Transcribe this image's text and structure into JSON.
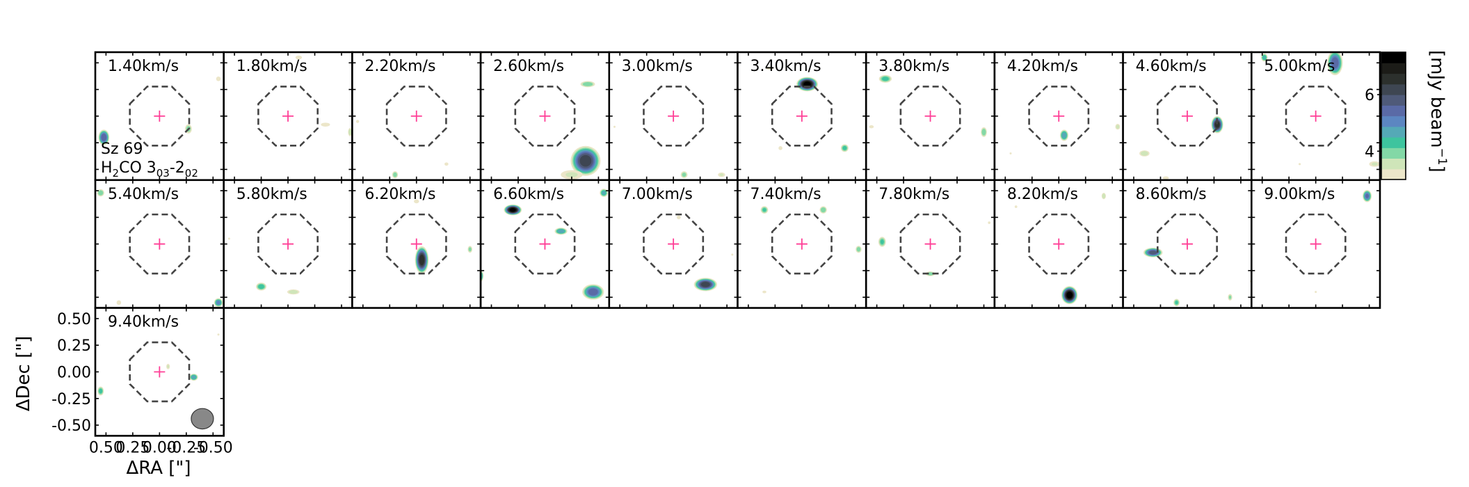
{
  "chart_data": {
    "type": "channel_map",
    "source": "Sz 69",
    "line": "H2CO 3_03-2_02",
    "source_label": "Sz 69",
    "line_label_main": "H",
    "line_label_sub1": "2",
    "line_label_mid": "CO 3",
    "line_label_sub2": "03",
    "line_label_dash": "-2",
    "line_label_sub3": "02",
    "channels": [
      "1.40km/s",
      "1.80km/s",
      "2.20km/s",
      "2.60km/s",
      "3.00km/s",
      "3.40km/s",
      "3.80km/s",
      "4.20km/s",
      "4.60km/s",
      "5.00km/s",
      "5.40km/s",
      "5.80km/s",
      "6.20km/s",
      "6.60km/s",
      "7.00km/s",
      "7.40km/s",
      "7.80km/s",
      "8.20km/s",
      "8.60km/s",
      "9.00km/s",
      "9.40km/s"
    ],
    "velocities_kms": [
      1.4,
      1.8,
      2.2,
      2.6,
      3.0,
      3.4,
      3.8,
      4.2,
      4.6,
      5.0,
      5.4,
      5.8,
      6.2,
      6.6,
      7.0,
      7.4,
      7.8,
      8.2,
      8.6,
      9.0,
      9.4
    ],
    "xlabel": "ΔRA [\"]",
    "ylabel": "ΔDec [\"]",
    "xlim": [
      0.6,
      -0.6
    ],
    "ylim": [
      -0.6,
      0.6
    ],
    "xticks": [
      0.5,
      0.25,
      0.0,
      -0.25,
      -0.5
    ],
    "xtick_labels": [
      "0.50",
      "0.25",
      "0.00",
      "-0.25",
      "-0.50"
    ],
    "yticks": [
      0.5,
      0.25,
      0.0,
      -0.25,
      -0.5
    ],
    "ytick_labels": [
      "0.50",
      "0.25",
      "0.00",
      "-0.25",
      "-0.50"
    ],
    "colorbar": {
      "label": "[mJy beam⁻¹]",
      "label_main": "[mJy beam",
      "label_sup": "−1",
      "label_close": "]",
      "range": [
        3.0,
        7.5
      ],
      "ticks": [
        4,
        6
      ],
      "tick_labels": [
        "4",
        "6"
      ],
      "colors": [
        "#ece6c9",
        "#cfe5b9",
        "#83d8a6",
        "#3ec49e",
        "#55a9b6",
        "#5c86c1",
        "#5a6aa6",
        "#4f5a79",
        "#3e4652",
        "#2c302d",
        "#1c1c18",
        "#000000"
      ]
    },
    "center_marker_color": "#ff3e96",
    "mask_ellipse": {
      "radius_arcsec": 0.3,
      "style": "dashed",
      "color": "#444444"
    },
    "beam": {
      "major_arcsec": 0.16,
      "minor_arcsec": 0.14,
      "color": "#888888"
    },
    "emission": [
      [
        {
          "x": 0.52,
          "y": -0.2,
          "peak": 5.6,
          "sx": 0.035,
          "sy": 0.05
        },
        {
          "x": -0.27,
          "y": -0.12,
          "peak": 3.9,
          "sx": 0.03,
          "sy": 0.04
        },
        {
          "x": -0.55,
          "y": 0.35,
          "peak": 3.2,
          "sx": 0.03,
          "sy": 0.03
        }
      ],
      [
        {
          "x": -0.35,
          "y": -0.08,
          "peak": 3.1,
          "sx": 0.07,
          "sy": 0.03
        },
        {
          "x": -0.1,
          "y": 0.55,
          "peak": 3.1,
          "sx": 0.05,
          "sy": 0.03
        },
        {
          "x": -0.58,
          "y": -0.15,
          "peak": 3.6,
          "sx": 0.02,
          "sy": 0.04
        }
      ],
      [
        {
          "x": 0.2,
          "y": -0.55,
          "peak": 4.0,
          "sx": 0.025,
          "sy": 0.03
        },
        {
          "x": 0.55,
          "y": -0.05,
          "peak": 3.2,
          "sx": 0.02,
          "sy": 0.02
        },
        {
          "x": -0.28,
          "y": -0.45,
          "peak": 3.1,
          "sx": 0.03,
          "sy": 0.025
        }
      ],
      [
        {
          "x": -0.38,
          "y": -0.42,
          "peak": 6.2,
          "sx": 0.09,
          "sy": 0.09
        },
        {
          "x": -0.4,
          "y": 0.3,
          "peak": 4.1,
          "sx": 0.06,
          "sy": 0.025
        },
        {
          "x": -0.25,
          "y": -0.55,
          "peak": 3.4,
          "sx": 0.12,
          "sy": 0.05
        },
        {
          "x": 0.6,
          "y": 0.6,
          "peak": 3.2,
          "sx": 0.03,
          "sy": 0.03
        }
      ],
      [
        {
          "x": -0.1,
          "y": -0.55,
          "peak": 3.9,
          "sx": 0.03,
          "sy": 0.03
        },
        {
          "x": -0.45,
          "y": -0.55,
          "peak": 3.4,
          "sx": 0.04,
          "sy": 0.025
        },
        {
          "x": 0.55,
          "y": -0.1,
          "peak": 3.0,
          "sx": 0.02,
          "sy": 0.02
        }
      ],
      [
        {
          "x": -0.05,
          "y": 0.3,
          "peak": 7.3,
          "sx": 0.06,
          "sy": 0.04
        },
        {
          "x": -0.4,
          "y": -0.3,
          "peak": 4.3,
          "sx": 0.03,
          "sy": 0.03
        },
        {
          "x": 0.3,
          "y": 0.45,
          "peak": 3.2,
          "sx": 0.05,
          "sy": 0.02
        },
        {
          "x": 0.2,
          "y": -0.3,
          "peak": 3.1,
          "sx": 0.03,
          "sy": 0.03
        }
      ],
      [
        {
          "x": 0.42,
          "y": 0.35,
          "peak": 4.3,
          "sx": 0.05,
          "sy": 0.03
        },
        {
          "x": -0.5,
          "y": -0.15,
          "peak": 4.1,
          "sx": 0.025,
          "sy": 0.04
        },
        {
          "x": 0.55,
          "y": -0.1,
          "peak": 3.2,
          "sx": 0.03,
          "sy": 0.02
        }
      ],
      [
        {
          "x": -0.05,
          "y": -0.18,
          "peak": 4.8,
          "sx": 0.03,
          "sy": 0.04
        },
        {
          "x": -0.55,
          "y": -0.1,
          "peak": 3.5,
          "sx": 0.025,
          "sy": 0.03
        },
        {
          "x": 0.45,
          "y": -0.35,
          "peak": 3.0,
          "sx": 0.02,
          "sy": 0.02
        }
      ],
      [
        {
          "x": -0.28,
          "y": -0.08,
          "peak": 6.6,
          "sx": 0.035,
          "sy": 0.05
        },
        {
          "x": 0.4,
          "y": -0.35,
          "peak": 3.6,
          "sx": 0.05,
          "sy": 0.03
        },
        {
          "x": 0.2,
          "y": -0.58,
          "peak": 3.2,
          "sx": 0.04,
          "sy": 0.02
        }
      ],
      [
        {
          "x": -0.18,
          "y": 0.5,
          "peak": 5.5,
          "sx": 0.05,
          "sy": 0.08
        },
        {
          "x": 0.48,
          "y": 0.55,
          "peak": 4.5,
          "sx": 0.025,
          "sy": 0.03
        },
        {
          "x": -0.55,
          "y": -0.45,
          "peak": 3.4,
          "sx": 0.06,
          "sy": 0.03
        },
        {
          "x": 0.15,
          "y": -0.45,
          "peak": 3.0,
          "sx": 0.03,
          "sy": 0.02
        }
      ],
      [
        {
          "x": 0.55,
          "y": 0.48,
          "peak": 4.1,
          "sx": 0.03,
          "sy": 0.03
        },
        {
          "x": 0.38,
          "y": -0.55,
          "peak": 3.2,
          "sx": 0.03,
          "sy": 0.03
        },
        {
          "x": -0.55,
          "y": -0.55,
          "peak": 5.0,
          "sx": 0.03,
          "sy": 0.03
        }
      ],
      [
        {
          "x": 0.25,
          "y": -0.4,
          "peak": 4.4,
          "sx": 0.04,
          "sy": 0.03
        },
        {
          "x": -0.05,
          "y": -0.45,
          "peak": 3.6,
          "sx": 0.06,
          "sy": 0.025
        },
        {
          "x": 0.55,
          "y": 0.05,
          "peak": 3.0,
          "sx": 0.02,
          "sy": 0.02
        }
      ],
      [
        {
          "x": -0.05,
          "y": -0.15,
          "peak": 6.6,
          "sx": 0.04,
          "sy": 0.08
        },
        {
          "x": -0.5,
          "y": -0.05,
          "peak": 3.9,
          "sx": 0.02,
          "sy": 0.03
        },
        {
          "x": 0.0,
          "y": 0.4,
          "peak": 3.1,
          "sx": 0.04,
          "sy": 0.03
        }
      ],
      [
        {
          "x": 0.3,
          "y": 0.32,
          "peak": 7.3,
          "sx": 0.05,
          "sy": 0.03
        },
        {
          "x": -0.15,
          "y": 0.12,
          "peak": 4.8,
          "sx": 0.045,
          "sy": 0.025
        },
        {
          "x": -0.45,
          "y": -0.45,
          "peak": 5.5,
          "sx": 0.07,
          "sy": 0.05
        },
        {
          "x": -0.55,
          "y": 0.48,
          "peak": 4.6,
          "sx": 0.03,
          "sy": 0.03
        },
        {
          "x": 0.6,
          "y": -0.3,
          "peak": 4.8,
          "sx": 0.02,
          "sy": 0.04
        }
      ],
      [
        {
          "x": -0.3,
          "y": -0.38,
          "peak": 6.2,
          "sx": 0.07,
          "sy": 0.04
        },
        {
          "x": -0.05,
          "y": 0.25,
          "peak": 3.1,
          "sx": 0.03,
          "sy": 0.03
        },
        {
          "x": -0.55,
          "y": -0.1,
          "peak": 3.0,
          "sx": 0.02,
          "sy": 0.02
        }
      ],
      [
        {
          "x": 0.35,
          "y": 0.32,
          "peak": 4.2,
          "sx": 0.03,
          "sy": 0.03
        },
        {
          "x": -0.2,
          "y": 0.32,
          "peak": 4.1,
          "sx": 0.03,
          "sy": 0.03
        },
        {
          "x": -0.53,
          "y": -0.05,
          "peak": 4.0,
          "sx": 0.025,
          "sy": 0.03
        },
        {
          "x": 0.35,
          "y": -0.45,
          "peak": 3.1,
          "sx": 0.03,
          "sy": 0.02
        }
      ],
      [
        {
          "x": 0.45,
          "y": 0.02,
          "peak": 4.2,
          "sx": 0.03,
          "sy": 0.04
        },
        {
          "x": 0.0,
          "y": -0.28,
          "peak": 4.0,
          "sx": 0.04,
          "sy": 0.02
        },
        {
          "x": -0.55,
          "y": 0.2,
          "peak": 3.1,
          "sx": 0.02,
          "sy": 0.02
        }
      ],
      [
        {
          "x": -0.1,
          "y": -0.48,
          "peak": 7.4,
          "sx": 0.045,
          "sy": 0.05
        },
        {
          "x": -0.42,
          "y": 0.45,
          "peak": 3.7,
          "sx": 0.02,
          "sy": 0.03
        },
        {
          "x": 0.4,
          "y": 0.35,
          "peak": 3.1,
          "sx": 0.02,
          "sy": 0.02
        }
      ],
      [
        {
          "x": 0.32,
          "y": -0.08,
          "peak": 5.8,
          "sx": 0.06,
          "sy": 0.03
        },
        {
          "x": 0.1,
          "y": -0.55,
          "peak": 4.2,
          "sx": 0.025,
          "sy": 0.03
        },
        {
          "x": -0.4,
          "y": -0.5,
          "peak": 3.8,
          "sx": 0.02,
          "sy": 0.03
        },
        {
          "x": -0.6,
          "y": -0.35,
          "peak": 3.2,
          "sx": 0.02,
          "sy": 0.02
        }
      ],
      [
        {
          "x": -0.48,
          "y": 0.45,
          "peak": 5.3,
          "sx": 0.03,
          "sy": 0.04
        },
        {
          "x": 0.0,
          "y": -0.45,
          "peak": 3.0,
          "sx": 0.02,
          "sy": 0.02
        }
      ],
      [
        {
          "x": 0.55,
          "y": -0.18,
          "peak": 4.3,
          "sx": 0.025,
          "sy": 0.035
        },
        {
          "x": -0.32,
          "y": -0.05,
          "peak": 4.8,
          "sx": 0.03,
          "sy": 0.025
        },
        {
          "x": -0.08,
          "y": 0.05,
          "peak": 3.4,
          "sx": 0.02,
          "sy": 0.03
        },
        {
          "x": -0.55,
          "y": 0.35,
          "peak": 3.0,
          "sx": 0.02,
          "sy": 0.02
        }
      ]
    ]
  }
}
